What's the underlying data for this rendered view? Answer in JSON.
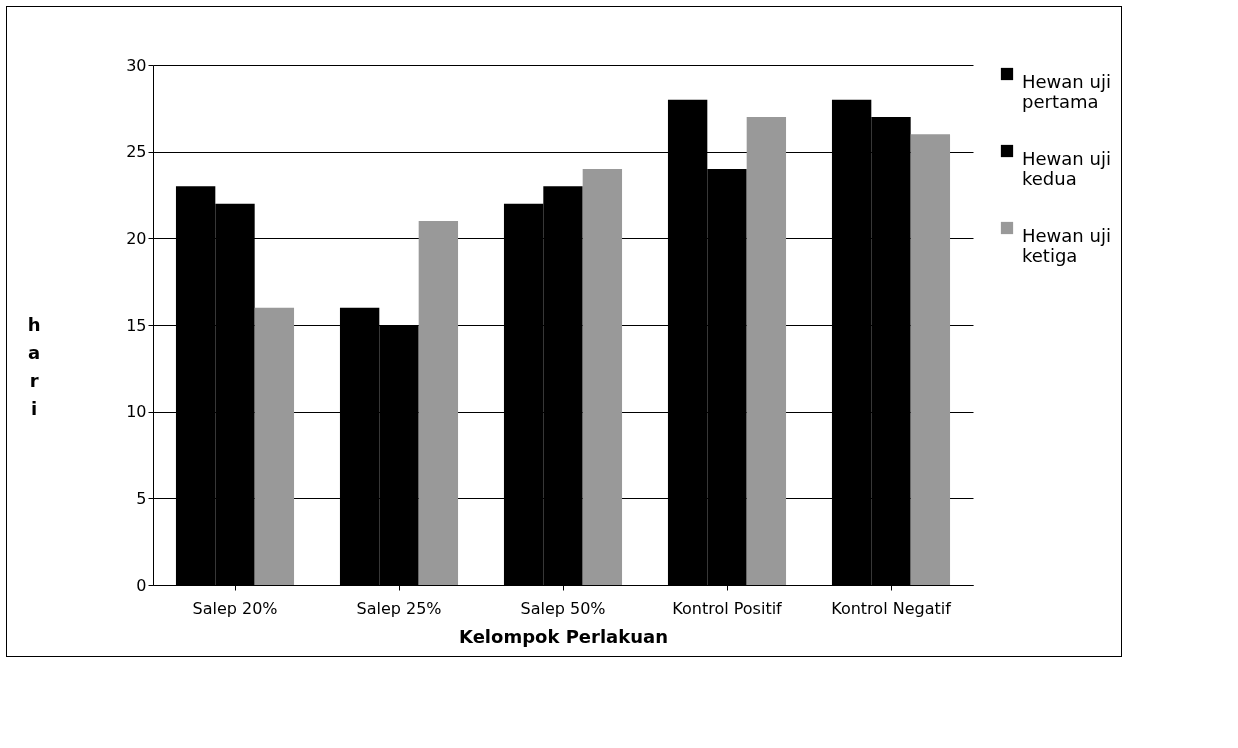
{
  "chart_data": {
    "type": "bar",
    "xlabel": "Kelompok Perlakuan",
    "ylabel": "hari",
    "categories": [
      "Salep 20%",
      "Salep 25%",
      "Salep 50%",
      "Kontrol Positif",
      "Kontrol Negatif"
    ],
    "series": [
      {
        "name": "Hewan uji pertama",
        "color": "#000000",
        "values": [
          23,
          16,
          22,
          28,
          28
        ]
      },
      {
        "name": "Hewan uji kedua",
        "color": "#000000",
        "values": [
          22,
          15,
          23,
          24,
          27
        ]
      },
      {
        "name": "Hewan uji ketiga",
        "color": "#999999",
        "values": [
          16,
          21,
          24,
          27,
          26
        ]
      }
    ],
    "ylim": [
      0,
      30
    ],
    "yticks": [
      0,
      5,
      10,
      15,
      20,
      25,
      30
    ],
    "grid": "y",
    "legend": "right"
  }
}
